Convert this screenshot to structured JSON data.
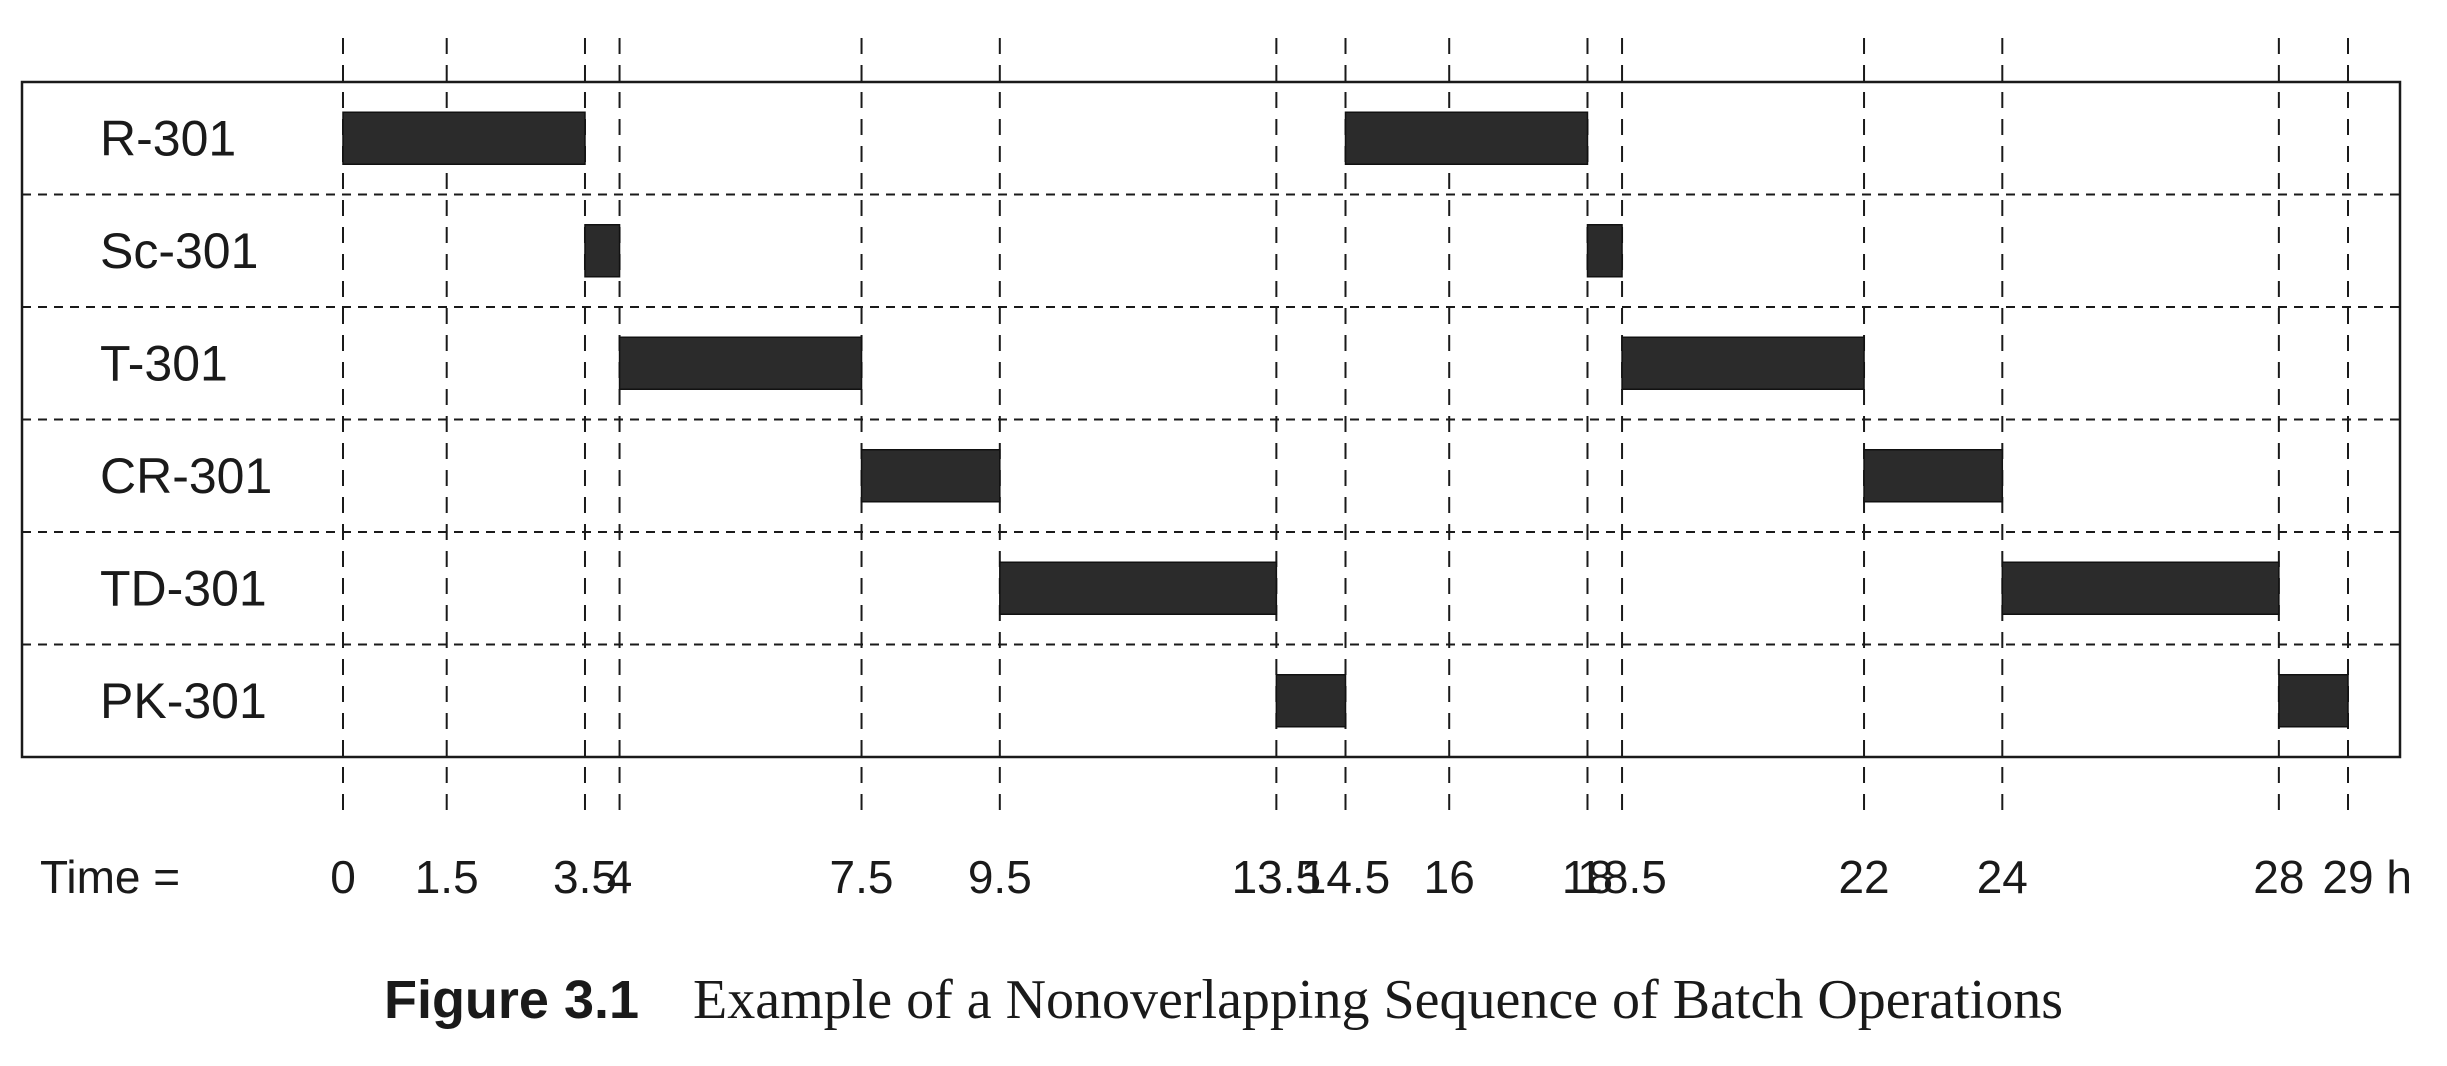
{
  "chart_data": {
    "type": "gantt",
    "rows": [
      "R-301",
      "Sc-301",
      "T-301",
      "CR-301",
      "TD-301",
      "PK-301"
    ],
    "tasks": [
      {
        "row": "R-301",
        "start": 0,
        "end": 3.5
      },
      {
        "row": "R-301",
        "start": 14.5,
        "end": 18
      },
      {
        "row": "Sc-301",
        "start": 3.5,
        "end": 4
      },
      {
        "row": "Sc-301",
        "start": 18,
        "end": 18.5
      },
      {
        "row": "T-301",
        "start": 4,
        "end": 7.5
      },
      {
        "row": "T-301",
        "start": 18.5,
        "end": 22
      },
      {
        "row": "CR-301",
        "start": 7.5,
        "end": 9.5
      },
      {
        "row": "CR-301",
        "start": 22,
        "end": 24
      },
      {
        "row": "TD-301",
        "start": 9.5,
        "end": 13.5
      },
      {
        "row": "TD-301",
        "start": 24,
        "end": 28
      },
      {
        "row": "PK-301",
        "start": 13.5,
        "end": 14.5
      },
      {
        "row": "PK-301",
        "start": 28,
        "end": 29
      }
    ],
    "ticks": [
      0,
      1.5,
      3.5,
      4,
      7.5,
      9.5,
      13.5,
      14.5,
      16,
      18,
      18.5,
      22,
      24,
      28,
      29
    ],
    "tick_labels": [
      "0",
      "1.5",
      "3.5",
      "4",
      "7.5",
      "9.5",
      "13.5",
      "14.5",
      "16",
      "18",
      "18.5",
      "22",
      "24",
      "28",
      "29 h"
    ],
    "xlabel": "Time =",
    "xlim": [
      0,
      29
    ],
    "grid": true,
    "bar_color": "#2b2b2b"
  },
  "caption": {
    "number": "Figure 3.1",
    "text": "Example of a Nonoverlapping Sequence of Batch Operations"
  }
}
